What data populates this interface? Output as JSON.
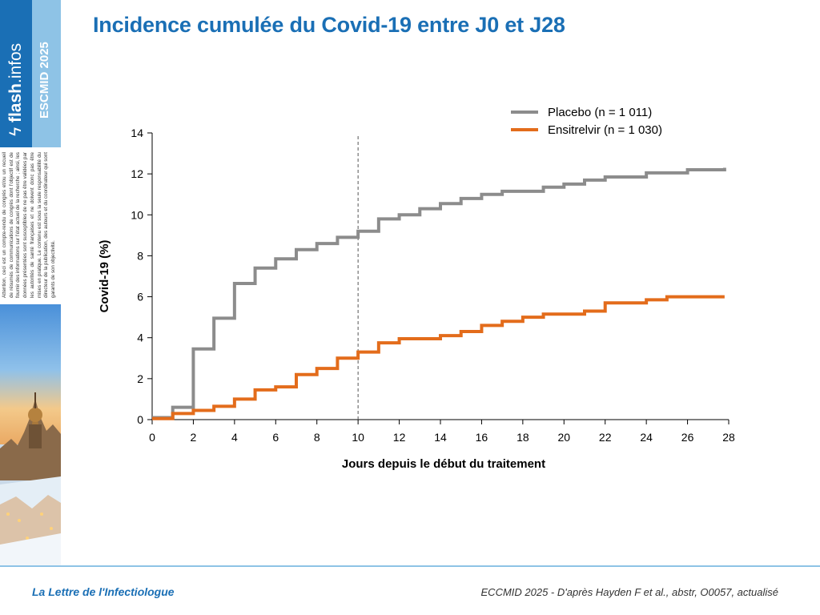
{
  "page": {
    "title": "Incidence cumulée du Covid-19 entre J0 et J28"
  },
  "sidebar": {
    "brand_bold": "flash",
    "brand_light": ".infos",
    "event": "ESCMID 2025",
    "disclaimer": "Attention, ceci est un compte-rendu de congrès et/ou un recueil de résumés de communications de congrès dont l'objectif est de fournir des informations sur l'état actuel de la recherche ; ainsi, les données présentées sont susceptibles de ne pas être validées par les autorités de santé françaises et ne doivent donc pas être mises en pratique. Le contenu est sous la seule responsabilité du directeur de la publication, des auteurs et du coordinateur qui sont garants de son objectivité.",
    "photo_icon": "city-photo-icon"
  },
  "footer": {
    "left": "La Lettre de l'Infectiologue",
    "right": "ECCMID 2025 - D'après Hayden F et al., abstr, O0057, actualisé"
  },
  "colors": {
    "brand_blue": "#1a6fb5",
    "light_blue": "#8ec3e6",
    "placebo": "#8c8c8c",
    "ensitrelvir": "#e36c1b"
  },
  "chart_data": {
    "type": "line",
    "step": true,
    "title": "Incidence cumulée du Covid-19 entre J0 et J28",
    "xlabel": "Jours depuis le début du traitement",
    "ylabel": "Covid-19 (%)",
    "xlim": [
      0,
      28
    ],
    "ylim": [
      0,
      14
    ],
    "xticks": [
      0,
      2,
      4,
      6,
      8,
      10,
      12,
      14,
      16,
      18,
      20,
      22,
      24,
      26,
      28
    ],
    "yticks": [
      0,
      2,
      4,
      6,
      8,
      10,
      12,
      14
    ],
    "grid": false,
    "legend_position": "top-right",
    "reference_line_x": 10,
    "series": [
      {
        "name": "Placebo (n = 1 011)",
        "color": "#8c8c8c",
        "points": [
          [
            0,
            0.1
          ],
          [
            1,
            0.6
          ],
          [
            2,
            3.45
          ],
          [
            3,
            4.95
          ],
          [
            4,
            6.65
          ],
          [
            5,
            7.4
          ],
          [
            6,
            7.85
          ],
          [
            7,
            8.3
          ],
          [
            8,
            8.6
          ],
          [
            9,
            8.9
          ],
          [
            10,
            9.2
          ],
          [
            11,
            9.8
          ],
          [
            12,
            10.0
          ],
          [
            13,
            10.3
          ],
          [
            14,
            10.55
          ],
          [
            15,
            10.8
          ],
          [
            16,
            11.0
          ],
          [
            17,
            11.15
          ],
          [
            18,
            11.15
          ],
          [
            19,
            11.35
          ],
          [
            20,
            11.5
          ],
          [
            21,
            11.7
          ],
          [
            22,
            11.85
          ],
          [
            23,
            11.85
          ],
          [
            24,
            12.05
          ],
          [
            25,
            12.05
          ],
          [
            26,
            12.2
          ],
          [
            27,
            12.2
          ],
          [
            27.8,
            12.3
          ]
        ]
      },
      {
        "name": "Ensitrelvir (n = 1 030)",
        "color": "#e36c1b",
        "points": [
          [
            0,
            0.05
          ],
          [
            1,
            0.3
          ],
          [
            2,
            0.45
          ],
          [
            3,
            0.65
          ],
          [
            4,
            1.0
          ],
          [
            5,
            1.45
          ],
          [
            6,
            1.6
          ],
          [
            7,
            2.2
          ],
          [
            8,
            2.5
          ],
          [
            9,
            3.0
          ],
          [
            10,
            3.3
          ],
          [
            11,
            3.75
          ],
          [
            12,
            3.95
          ],
          [
            13,
            3.95
          ],
          [
            14,
            4.1
          ],
          [
            15,
            4.3
          ],
          [
            16,
            4.6
          ],
          [
            17,
            4.8
          ],
          [
            18,
            5.0
          ],
          [
            19,
            5.15
          ],
          [
            20,
            5.15
          ],
          [
            21,
            5.3
          ],
          [
            22,
            5.7
          ],
          [
            23,
            5.7
          ],
          [
            24,
            5.85
          ],
          [
            25,
            6.0
          ],
          [
            26,
            6.0
          ],
          [
            27,
            6.0
          ],
          [
            27.8,
            6.0
          ]
        ]
      }
    ]
  }
}
